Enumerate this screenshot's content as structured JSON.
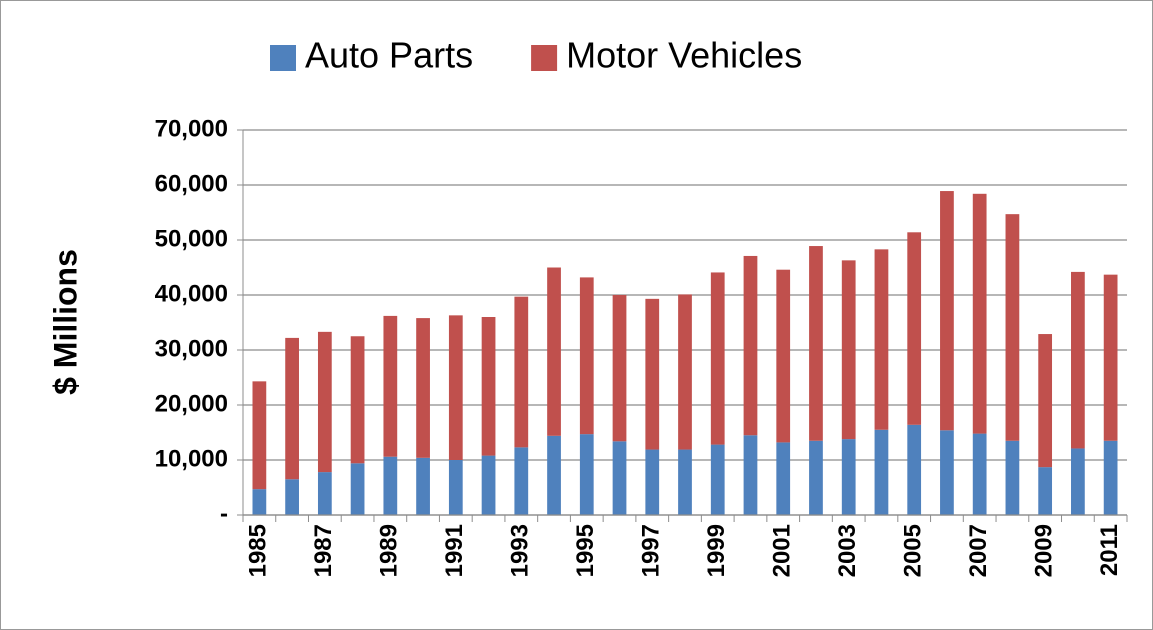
{
  "chart_data": {
    "type": "stacked-bar",
    "y_label": "$ Millions",
    "categories": [
      "1985",
      null,
      "1987",
      null,
      "1989",
      null,
      "1991",
      null,
      "1993",
      null,
      "1995",
      null,
      "1997",
      null,
      "1999",
      null,
      "2001",
      null,
      "2003",
      null,
      "2005",
      null,
      "2007",
      null,
      "2009",
      null,
      "2011"
    ],
    "series": [
      {
        "name": "Auto Parts",
        "color": "#4f81bd",
        "values": [
          4700,
          6500,
          7800,
          9400,
          10600,
          10400,
          10000,
          10800,
          12300,
          14400,
          14700,
          13400,
          11900,
          11900,
          12800,
          14500,
          13200,
          13500,
          13800,
          15500,
          16400,
          15400,
          14800,
          13500,
          8700,
          12100,
          13500
        ]
      },
      {
        "name": "Motor Vehicles",
        "color": "#c0504d",
        "values": [
          19600,
          25700,
          25500,
          23100,
          25600,
          25400,
          26300,
          25200,
          27400,
          30600,
          28500,
          26600,
          27400,
          28200,
          31300,
          32600,
          31400,
          35400,
          32500,
          32800,
          35000,
          43500,
          43600,
          41200,
          24200,
          32100,
          30200
        ]
      }
    ],
    "ylim": [
      0,
      70000
    ],
    "yticks": [
      {
        "value": 0,
        "label": "-"
      },
      {
        "value": 10000,
        "label": "10,000"
      },
      {
        "value": 20000,
        "label": "20,000"
      },
      {
        "value": 30000,
        "label": "30,000"
      },
      {
        "value": 40000,
        "label": "40,000"
      },
      {
        "value": 50000,
        "label": "50,000"
      },
      {
        "value": 60000,
        "label": "60,000"
      },
      {
        "value": 70000,
        "label": "70,000"
      }
    ],
    "grid": true,
    "legend": "top"
  }
}
